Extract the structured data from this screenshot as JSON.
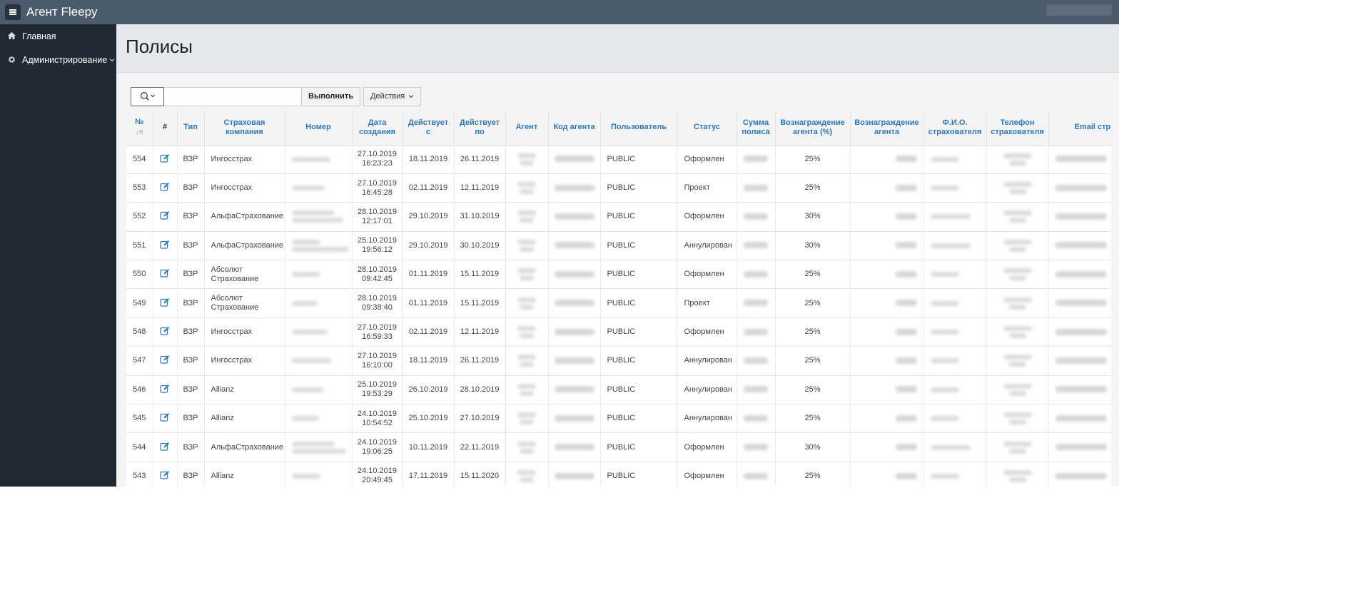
{
  "app": {
    "title": "Агент Fleepy"
  },
  "sidebar": {
    "items": [
      {
        "label": "Главная",
        "icon": "home-icon"
      },
      {
        "label": "Администрирование",
        "icon": "gear-icon"
      }
    ]
  },
  "page": {
    "title": "Полисы"
  },
  "toolbar": {
    "search_placeholder": "",
    "run_label": "Выполнить",
    "actions_label": "Действия"
  },
  "table": {
    "columns": [
      "№",
      "#",
      "Тип",
      "Страховая компания",
      "Номер",
      "Дата создания",
      "Действует с",
      "Действует по",
      "Агент",
      "Код агента",
      "Пользователь",
      "Статус",
      "Сумма полиса",
      "Вознаграждение агента (%)",
      "Вознаграждение агента",
      "Ф.И.О. страхователя",
      "Телефон страхователя",
      "Email стр"
    ],
    "rows": [
      {
        "num": "554",
        "type": "ВЗР",
        "company": "Ингосстрах",
        "created_date": "27.10.2019",
        "created_time": "16:23:23",
        "from": "18.11.2019",
        "to": "26.11.2019",
        "user": "PUBLIC",
        "status": "Оформлен",
        "reward_pct": "25%"
      },
      {
        "num": "553",
        "type": "ВЗР",
        "company": "Ингосстрах",
        "created_date": "27.10.2019",
        "created_time": "16:45:28",
        "from": "02.11.2019",
        "to": "12.11.2019",
        "user": "PUBLIC",
        "status": "Проект",
        "reward_pct": "25%"
      },
      {
        "num": "552",
        "type": "ВЗР",
        "company": "АльфаСтрахование",
        "created_date": "28.10.2019",
        "created_time": "12:17:01",
        "from": "29.10.2019",
        "to": "31.10.2019",
        "user": "PUBLIC",
        "status": "Оформлен",
        "reward_pct": "30%"
      },
      {
        "num": "551",
        "type": "ВЗР",
        "company": "АльфаСтрахование",
        "created_date": "25.10.2019",
        "created_time": "19:56:12",
        "from": "29.10.2019",
        "to": "30.10.2019",
        "user": "PUBLIC",
        "status": "Аннулирован",
        "reward_pct": "30%"
      },
      {
        "num": "550",
        "type": "ВЗР",
        "company": "Абсолют Страхование",
        "created_date": "28.10.2019",
        "created_time": "09:42:45",
        "from": "01.11.2019",
        "to": "15.11.2019",
        "user": "PUBLIC",
        "status": "Оформлен",
        "reward_pct": "25%"
      },
      {
        "num": "549",
        "type": "ВЗР",
        "company": "Абсолют Страхование",
        "created_date": "28.10.2019",
        "created_time": "09:38:40",
        "from": "01.11.2019",
        "to": "15.11.2019",
        "user": "PUBLIC",
        "status": "Проект",
        "reward_pct": "25%"
      },
      {
        "num": "548",
        "type": "ВЗР",
        "company": "Ингосстрах",
        "created_date": "27.10.2019",
        "created_time": "16:59:33",
        "from": "02.11.2019",
        "to": "12.11.2019",
        "user": "PUBLIC",
        "status": "Оформлен",
        "reward_pct": "25%"
      },
      {
        "num": "547",
        "type": "ВЗР",
        "company": "Ингосстрах",
        "created_date": "27.10.2019",
        "created_time": "16:10:00",
        "from": "18.11.2019",
        "to": "26.11.2019",
        "user": "PUBLIC",
        "status": "Аннулирован",
        "reward_pct": "25%"
      },
      {
        "num": "546",
        "type": "ВЗР",
        "company": "Allianz",
        "created_date": "25.10.2019",
        "created_time": "19:53:29",
        "from": "26.10.2019",
        "to": "28.10.2019",
        "user": "PUBLIC",
        "status": "Аннулирован",
        "reward_pct": "25%"
      },
      {
        "num": "545",
        "type": "ВЗР",
        "company": "Allianz",
        "created_date": "24.10.2019",
        "created_time": "10:54:52",
        "from": "25.10.2019",
        "to": "27.10.2019",
        "user": "PUBLIC",
        "status": "Аннулирован",
        "reward_pct": "25%"
      },
      {
        "num": "544",
        "type": "ВЗР",
        "company": "АльфаСтрахование",
        "created_date": "24.10.2019",
        "created_time": "19:06:25",
        "from": "10.11.2019",
        "to": "22.11.2019",
        "user": "PUBLIC",
        "status": "Оформлен",
        "reward_pct": "30%"
      },
      {
        "num": "543",
        "type": "ВЗР",
        "company": "Allianz",
        "created_date": "24.10.2019",
        "created_time": "20:49:45",
        "from": "17.11.2019",
        "to": "15.11.2020",
        "user": "PUBLIC",
        "status": "Оформлен",
        "reward_pct": "25%"
      }
    ]
  },
  "colors": {
    "topbar": "#4b5b6b",
    "sidebar": "#212a33",
    "link": "#2a78c2"
  }
}
